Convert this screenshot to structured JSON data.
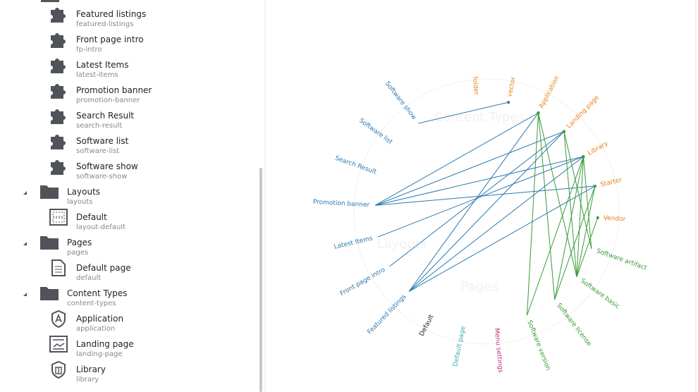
{
  "sidebar": {
    "items": [
      {
        "title": "Featured listings",
        "alias": "featured-listings",
        "icon": "puzzle",
        "level": 2
      },
      {
        "title": "Front page intro",
        "alias": "fp-intro",
        "icon": "puzzle",
        "level": 2
      },
      {
        "title": "Latest Items",
        "alias": "latest-items",
        "icon": "puzzle",
        "level": 2
      },
      {
        "title": "Promotion banner",
        "alias": "promotion-banner",
        "icon": "puzzle",
        "level": 2
      },
      {
        "title": "Search Result",
        "alias": "search-result",
        "icon": "puzzle",
        "level": 2
      },
      {
        "title": "Software list",
        "alias": "software-list",
        "icon": "puzzle",
        "level": 2
      },
      {
        "title": "Software show",
        "alias": "software-show",
        "icon": "puzzle",
        "level": 2
      },
      {
        "title": "Layouts",
        "alias": "layouts",
        "icon": "folder",
        "level": 1
      },
      {
        "title": "Default",
        "alias": "layout-default",
        "icon": "layout",
        "level": 2
      },
      {
        "title": "Pages",
        "alias": "pages",
        "icon": "folder",
        "level": 1
      },
      {
        "title": "Default page",
        "alias": "default",
        "icon": "document",
        "level": 2
      },
      {
        "title": "Content Types",
        "alias": "content-types",
        "icon": "folder",
        "level": 1
      },
      {
        "title": "Application",
        "alias": "application",
        "icon": "shield",
        "level": 2
      },
      {
        "title": "Landing page",
        "alias": "landing-page",
        "icon": "landing",
        "level": 2
      },
      {
        "title": "Library",
        "alias": "library",
        "icon": "library",
        "level": 2
      }
    ]
  },
  "diagram": {
    "groups": [
      "Content Types",
      "Layouts",
      "Pages"
    ],
    "nodes": [
      {
        "label": "folder",
        "color": "#e8821e"
      },
      {
        "label": "vector",
        "color": "#e8821e"
      },
      {
        "label": "Application",
        "color": "#e8821e"
      },
      {
        "label": "Landing page",
        "color": "#e8821e"
      },
      {
        "label": "Library",
        "color": "#e8821e"
      },
      {
        "label": "Starter",
        "color": "#e8821e"
      },
      {
        "label": "Vendor",
        "color": "#e8821e"
      },
      {
        "label": "Software artifact",
        "color": "#3a9a3a"
      },
      {
        "label": "Software basic",
        "color": "#3a9a3a"
      },
      {
        "label": "Software license",
        "color": "#3a9a3a"
      },
      {
        "label": "Software version",
        "color": "#3a9a3a"
      },
      {
        "label": "Menu settings",
        "color": "#c0307a"
      },
      {
        "label": "Default page",
        "color": "#3aaab0"
      },
      {
        "label": "Default",
        "color": "#222222"
      },
      {
        "label": "Featured listings",
        "color": "#2a7ab0"
      },
      {
        "label": "Front page intro",
        "color": "#2a7ab0"
      },
      {
        "label": "Latest Items",
        "color": "#2a7ab0"
      },
      {
        "label": "Promotion banner",
        "color": "#2a7ab0"
      },
      {
        "label": "Search Result",
        "color": "#2a7ab0"
      },
      {
        "label": "Software list",
        "color": "#2a7ab0"
      },
      {
        "label": "Software show",
        "color": "#2a7ab0"
      }
    ]
  }
}
